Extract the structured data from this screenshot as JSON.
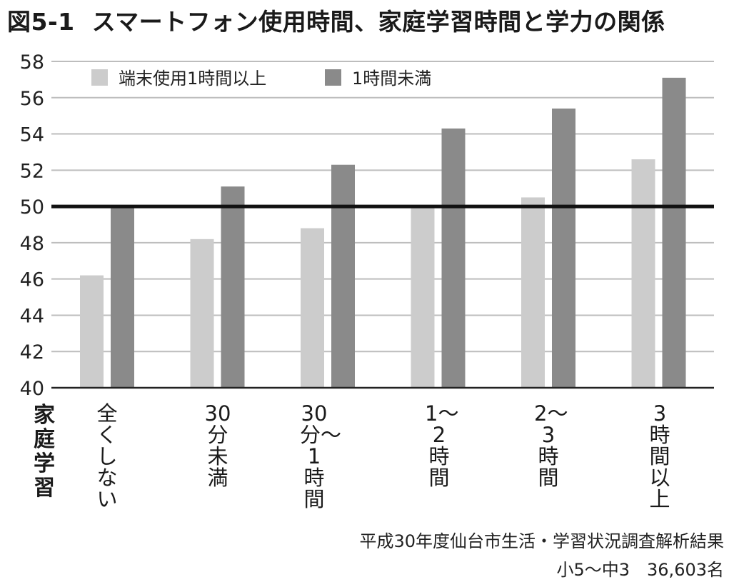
{
  "title": {
    "figure_number": "図5-1",
    "text": "スマートフォン使用時間、家庭学習時間と学力の関係"
  },
  "colors": {
    "series_light": "#cccccc",
    "series_dark": "#8a8a8a",
    "reference_line": "#111111",
    "grid": "#bdbdbd"
  },
  "chart_data": {
    "type": "bar",
    "title": "スマートフォン使用時間、家庭学習時間と学力の関係",
    "xlabel": "家庭学習",
    "ylabel": "",
    "ylim": [
      40,
      58
    ],
    "yticks": [
      "40",
      "42",
      "44",
      "46",
      "48",
      "50",
      "52",
      "54",
      "56",
      "58"
    ],
    "grid": true,
    "legend_position": "top-left",
    "reference_line": 50,
    "categories": [
      "全くしない",
      "30分未満",
      "30分〜1時間",
      "1〜2時間",
      "2〜3時間",
      "3時間以上"
    ],
    "series": [
      {
        "name": "端末使用1時間以上",
        "values": [
          46.2,
          48.2,
          48.8,
          50.0,
          50.5,
          52.6
        ]
      },
      {
        "name": "1時間未満",
        "values": [
          50.0,
          51.1,
          52.3,
          54.3,
          55.4,
          57.1
        ]
      }
    ]
  },
  "source": {
    "line1": "平成30年度仙台市生活・学習状況調査解析結果",
    "line2": "小5〜中3　36,603名"
  }
}
